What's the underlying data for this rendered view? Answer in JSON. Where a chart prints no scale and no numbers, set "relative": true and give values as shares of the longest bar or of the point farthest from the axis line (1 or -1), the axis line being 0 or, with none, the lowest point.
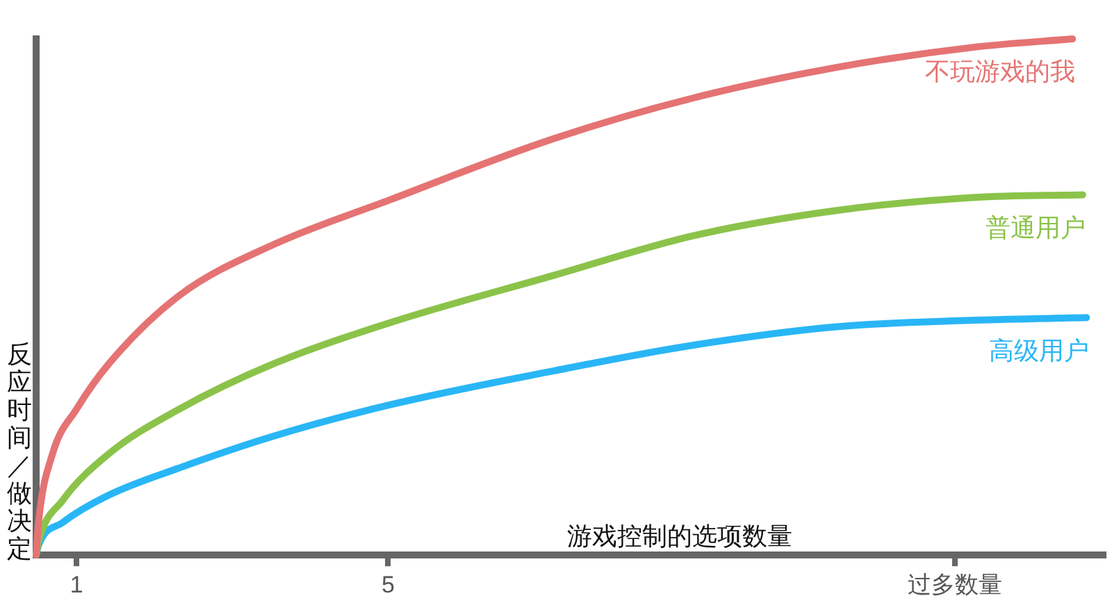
{
  "chart_data": {
    "type": "line",
    "relative": true,
    "xlabel": "游戏控制的选项数量",
    "ylabel": "反应时间／做决定",
    "xlim": [
      0.48,
      14.19
    ],
    "xticks": [
      1,
      5,
      {
        "value": 12.28,
        "label": "过多数量"
      }
    ],
    "grid": false,
    "legend": false,
    "marker": "none",
    "line_style": "solid",
    "series": [
      {
        "name": "不玩游戏的我",
        "color": "#e57373",
        "x": [
          0.48,
          0.51,
          0.69,
          1.0,
          1.41,
          2.32,
          3.52,
          5.02,
          7.13,
          8.93,
          10.73,
          12.53,
          13.79
        ],
        "values": [
          0,
          0.063,
          0.196,
          0.283,
          0.37,
          0.503,
          0.601,
          0.688,
          0.807,
          0.886,
          0.944,
          0.984,
          1
        ]
      },
      {
        "name": "普通用户",
        "color": "#8bc34a",
        "x": [
          0.48,
          0.51,
          0.82,
          1.41,
          2.32,
          3.52,
          5.02,
          7.13,
          8.93,
          10.73,
          12.53,
          13.92
        ],
        "values": [
          0,
          0.026,
          0.106,
          0.196,
          0.283,
          0.37,
          0.45,
          0.542,
          0.619,
          0.667,
          0.693,
          0.698
        ]
      },
      {
        "name": "高级用户",
        "color": "#29b6f6",
        "x": [
          0.48,
          0.51,
          0.82,
          1.41,
          2.32,
          3.52,
          5.02,
          7.13,
          8.93,
          10.73,
          12.53,
          13.97
        ],
        "values": [
          0,
          0.019,
          0.063,
          0.116,
          0.169,
          0.23,
          0.291,
          0.357,
          0.407,
          0.442,
          0.455,
          0.46
        ]
      }
    ]
  }
}
